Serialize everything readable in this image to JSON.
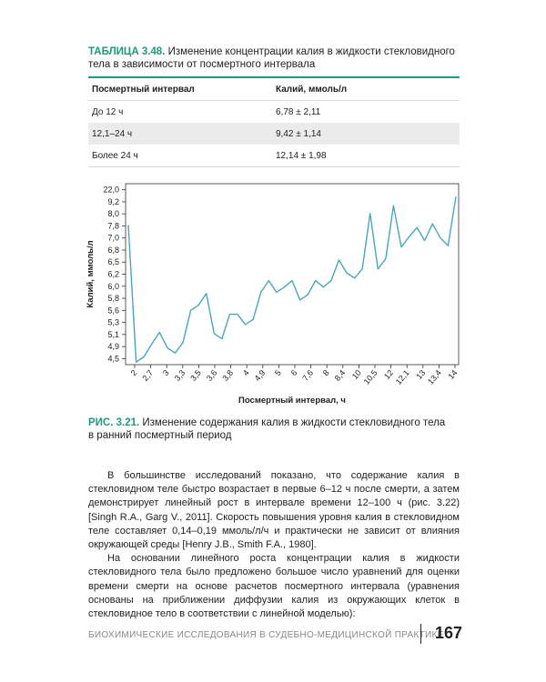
{
  "table": {
    "label": "ТАБЛИЦА 3.48.",
    "title_line1": "Изменение концентрации калия в жидкости стекловидного",
    "title_line2": "тела в зависимости от посмертного интервала",
    "headers": [
      "Посмертный интервал",
      "Калий, ммоль/л"
    ],
    "rows": [
      [
        "До 12 ч",
        "6,78 ± 2,11"
      ],
      [
        "12,1–24 ч",
        "9,42 ± 1,14"
      ],
      [
        "Более 24 ч",
        "12,14 ± 1,98"
      ]
    ]
  },
  "figure": {
    "label": "РИС. 3.21.",
    "caption_line1": "Изменение содержания калия в жидкости стекловидного тела",
    "caption_line2": "в ранний посмертный период"
  },
  "chart_data": {
    "type": "line",
    "xlabel": "Посмертный интервал, ч",
    "ylabel": "Калий, ммоль/л",
    "x_tick_labels": [
      "2",
      "2,7",
      "3",
      "3,3",
      "3,5",
      "3,6",
      "3,8",
      "4",
      "4,9",
      "5",
      "6",
      "7,6",
      "8",
      "8,4",
      "10",
      "10,5",
      "12",
      "12,1",
      "13",
      "13,4",
      "14"
    ],
    "y_tick_labels": [
      "4,5",
      "4,9",
      "5,1",
      "5,3",
      "5,6",
      "5,8",
      "6,0",
      "6,2",
      "6,5",
      "6,8",
      "7,0",
      "7,8",
      "8,0",
      "9,2",
      "22,0"
    ],
    "values_axis_units": [
      10.8,
      0.2,
      0.6,
      1.6,
      2.5,
      1.3,
      0.9,
      1.7,
      4.2,
      4.6,
      5.5,
      2.4,
      2.0,
      3.9,
      3.9,
      3.1,
      3.5,
      5.6,
      6.5,
      5.6,
      6.0,
      6.5,
      5.0,
      5.4,
      6.5,
      6.0,
      6.5,
      8.1,
      7.1,
      6.7,
      7.4,
      11.7,
      7.4,
      8.2,
      12.3,
      9.1,
      9.9,
      10.6,
      9.6,
      10.9,
      9.8,
      9.2,
      13.0
    ],
    "grid": false,
    "line_color": "#4aa6c0"
  },
  "body": {
    "p1": "В большинстве исследований показано, что содержание калия в стекловидном теле быстро возрастает в первые 6–12 ч после смерти, а затем демонстрирует линейный рост в интервале времени 12–100 ч (рис. 3.22) [Singh R.A., Garg V., 2011]. Скорость повышения уровня калия в стекловидном теле составляет 0,14–0,19 ммоль/л/ч и практически не зависит от влияния окружающей среды [Henry J.B., Smith F.A., 1980].",
    "p2": "На основании линейного роста концентрации калия в жидкости стекловидного тела было предложено большое число уравнений для оценки времени смерти на основе расчетов посмертного интервала (уравнения основаны на приближении диффузии калия из окружающих клеток в стекловидное тело в соответствии с линейной моделью):"
  },
  "footer": {
    "running_title": "БИОХИМИЧЕСКИЕ ИССЛЕДОВАНИЯ В СУДЕБНО-МЕДИЦИНСКОЙ ПРАКТИКЕ",
    "page_number": "167"
  }
}
